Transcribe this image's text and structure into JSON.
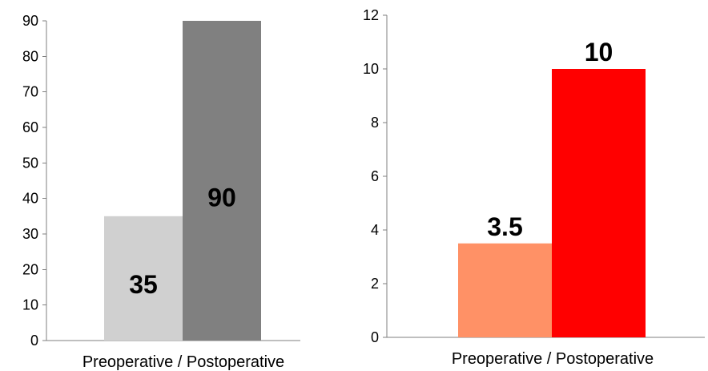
{
  "chart_data": [
    {
      "type": "bar",
      "categories": [
        "Preoperative / Postoperative"
      ],
      "xlabel": "Preoperative / Postoperative",
      "ylim": [
        0,
        90
      ],
      "yticks": [
        "0",
        "10",
        "20",
        "30",
        "40",
        "50",
        "60",
        "70",
        "80",
        "90"
      ],
      "series": [
        {
          "values": [
            35
          ],
          "label": "35",
          "color": "#d0d0d0"
        },
        {
          "values": [
            90
          ],
          "label": "90",
          "color": "#808080"
        }
      ]
    },
    {
      "type": "bar",
      "categories": [
        "Preoperative / Postoperative"
      ],
      "xlabel": "Preoperative / Postoperative",
      "ylim": [
        0,
        12
      ],
      "yticks": [
        "0",
        "2",
        "4",
        "6",
        "8",
        "10",
        "12"
      ],
      "series": [
        {
          "values": [
            3.5
          ],
          "label": "3.5",
          "color": "#ff9166"
        },
        {
          "values": [
            10
          ],
          "label": "10",
          "color": "#ff0000"
        }
      ]
    }
  ]
}
